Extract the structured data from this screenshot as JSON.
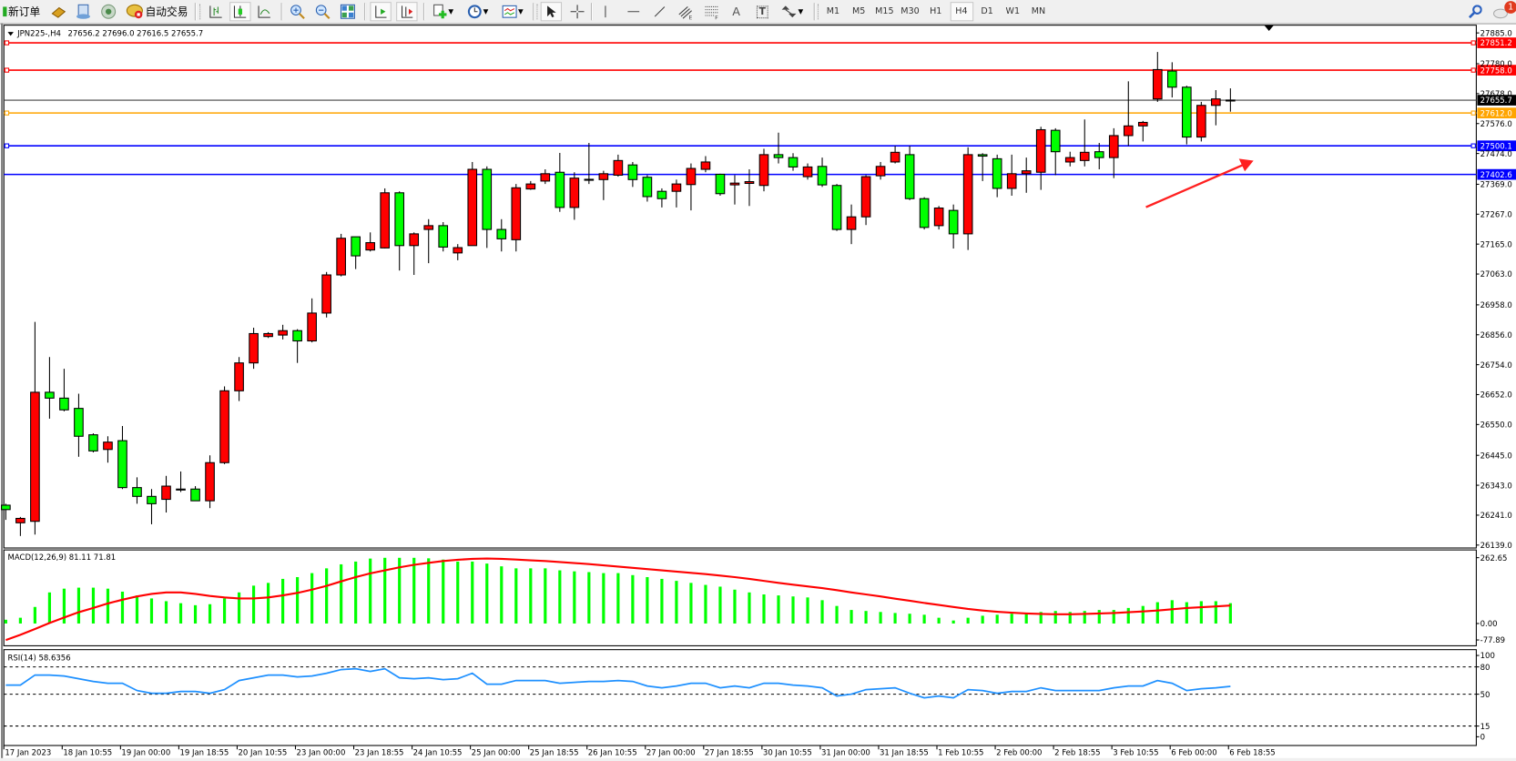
{
  "toolbar": {
    "new_order_label": "新订单",
    "auto_trading_label": "自动交易",
    "text_tool_label": "A",
    "text_label_tool_label": "T",
    "timeframes": [
      "M1",
      "M5",
      "M15",
      "M30",
      "H1",
      "H4",
      "D1",
      "W1",
      "MN"
    ],
    "active_timeframe": "H4",
    "notification_count": "1",
    "icons": [
      "new-order-icon",
      "market-watch-icon",
      "data-window-icon",
      "signals-icon",
      "auto-trading-icon",
      "bar-chart-icon",
      "candlestick-chart-icon",
      "line-chart-icon",
      "zoom-in-icon",
      "zoom-out-icon",
      "tile-windows-icon",
      "auto-scroll-icon",
      "chart-shift-icon",
      "add-indicator-icon",
      "periods-icon",
      "templates-icon",
      "cursor-icon",
      "crosshair-icon",
      "vertical-line-icon",
      "horizontal-line-icon",
      "trend-line-icon",
      "equidistant-channel-icon",
      "fibonacci-icon",
      "text-icon",
      "text-label-icon",
      "arrows-icon",
      "search-icon",
      "notification-icon"
    ]
  },
  "chart": {
    "header_symbol": "JPN225-,H4",
    "header_ohlc": "27656.2 27696.0 27616.5 27655.7",
    "macd_label": "MACD(12,26,9) 81.11 71.81",
    "rsi_label": "RSI(14) 58.6356"
  },
  "chart_data": {
    "type": "candlestick",
    "symbol": "JPN225-",
    "timeframe": "H4",
    "up_color": "#ff0000",
    "down_color": "#00ff00",
    "x_tick_labels": [
      "17 Jan 2023",
      "18 Jan 10:55",
      "19 Jan 00:00",
      "19 Jan 18:55",
      "20 Jan 10:55",
      "23 Jan 00:00",
      "23 Jan 18:55",
      "24 Jan 10:55",
      "25 Jan 00:00",
      "25 Jan 18:55",
      "26 Jan 10:55",
      "27 Jan 00:00",
      "27 Jan 18:55",
      "30 Jan 10:55",
      "31 Jan 00:00",
      "31 Jan 18:55",
      "1 Feb 10:55",
      "2 Feb 00:00",
      "2 Feb 18:55",
      "3 Feb 10:55",
      "6 Feb 00:00",
      "6 Feb 18:55"
    ],
    "y_tick_labels": [
      "27885.0",
      "27780.0",
      "27678.0",
      "27576.0",
      "27474.0",
      "27369.0",
      "27267.0",
      "27165.0",
      "27063.0",
      "26958.0",
      "26856.0",
      "26754.0",
      "26652.0",
      "26550.0",
      "26445.0",
      "26343.0",
      "26241.0",
      "26139.0"
    ],
    "ylim": [
      26139.0,
      27885.0
    ],
    "ohlc": [
      [
        26275,
        26280,
        26225,
        26260
      ],
      [
        26215,
        26235,
        26170,
        26230
      ],
      [
        26220,
        26900,
        26175,
        26660
      ],
      [
        26660,
        26780,
        26570,
        26640
      ],
      [
        26640,
        26740,
        26595,
        26600
      ],
      [
        26605,
        26655,
        26440,
        26510
      ],
      [
        26515,
        26520,
        26455,
        26460
      ],
      [
        26465,
        26510,
        26420,
        26490
      ],
      [
        26495,
        26545,
        26330,
        26335
      ],
      [
        26335,
        26370,
        26280,
        26305
      ],
      [
        26305,
        26330,
        26210,
        26280
      ],
      [
        26295,
        26375,
        26250,
        26340
      ],
      [
        26330,
        26390,
        26320,
        26330
      ],
      [
        26330,
        26340,
        26290,
        26290
      ],
      [
        26290,
        26445,
        26265,
        26420
      ],
      [
        26420,
        26680,
        26415,
        26665
      ],
      [
        26665,
        26780,
        26630,
        26760
      ],
      [
        26760,
        26880,
        26740,
        26860
      ],
      [
        26850,
        26865,
        26845,
        26860
      ],
      [
        26855,
        26890,
        26840,
        26870
      ],
      [
        26870,
        26875,
        26760,
        26835
      ],
      [
        26835,
        26980,
        26830,
        26930
      ],
      [
        26930,
        27070,
        26915,
        27060
      ],
      [
        27060,
        27200,
        27055,
        27185
      ],
      [
        27190,
        27190,
        27080,
        27125
      ],
      [
        27145,
        27205,
        27140,
        27170
      ],
      [
        27152,
        27355,
        27150,
        27340
      ],
      [
        27340,
        27345,
        27075,
        27160
      ],
      [
        27160,
        27205,
        27060,
        27200
      ],
      [
        27215,
        27250,
        27100,
        27228
      ],
      [
        27228,
        27240,
        27140,
        27155
      ],
      [
        27135,
        27165,
        27110,
        27153
      ],
      [
        27160,
        27445,
        27160,
        27420
      ],
      [
        27420,
        27430,
        27152,
        27215
      ],
      [
        27215,
        27250,
        27140,
        27183
      ],
      [
        27180,
        27370,
        27140,
        27357
      ],
      [
        27353,
        27380,
        27350,
        27370
      ],
      [
        27380,
        27420,
        27370,
        27405
      ],
      [
        27410,
        27476,
        27275,
        27290
      ],
      [
        27290,
        27410,
        27248,
        27390
      ],
      [
        27385,
        27510,
        27370,
        27386
      ],
      [
        27385,
        27415,
        27315,
        27405
      ],
      [
        27400,
        27470,
        27395,
        27450
      ],
      [
        27435,
        27445,
        27360,
        27385
      ],
      [
        27393,
        27400,
        27310,
        27327
      ],
      [
        27345,
        27355,
        27290,
        27320
      ],
      [
        27345,
        27385,
        27290,
        27370
      ],
      [
        27368,
        27440,
        27280,
        27423
      ],
      [
        27420,
        27465,
        27410,
        27445
      ],
      [
        27403,
        27405,
        27330,
        27337
      ],
      [
        27367,
        27400,
        27300,
        27373
      ],
      [
        27372,
        27420,
        27295,
        27378
      ],
      [
        27365,
        27490,
        27345,
        27470
      ],
      [
        27470,
        27545,
        27440,
        27460
      ],
      [
        27460,
        27475,
        27415,
        27428
      ],
      [
        27395,
        27440,
        27385,
        27428
      ],
      [
        27430,
        27460,
        27360,
        27367
      ],
      [
        27365,
        27370,
        27210,
        27215
      ],
      [
        27215,
        27300,
        27165,
        27258
      ],
      [
        27258,
        27400,
        27230,
        27395
      ],
      [
        27398,
        27445,
        27385,
        27430
      ],
      [
        27445,
        27500,
        27440,
        27478
      ],
      [
        27470,
        27500,
        27315,
        27320
      ],
      [
        27320,
        27325,
        27215,
        27222
      ],
      [
        27228,
        27295,
        27215,
        27288
      ],
      [
        27280,
        27300,
        27150,
        27200
      ],
      [
        27200,
        27495,
        27145,
        27470
      ],
      [
        27470,
        27475,
        27380,
        27465
      ],
      [
        27456,
        27470,
        27325,
        27355
      ],
      [
        27355,
        27470,
        27330,
        27405
      ],
      [
        27405,
        27460,
        27340,
        27415
      ],
      [
        27410,
        27565,
        27350,
        27555
      ],
      [
        27553,
        27560,
        27400,
        27480
      ],
      [
        27445,
        27480,
        27430,
        27460
      ],
      [
        27450,
        27590,
        27430,
        27478
      ],
      [
        27480,
        27510,
        27420,
        27460
      ],
      [
        27460,
        27560,
        27390,
        27535
      ],
      [
        27535,
        27720,
        27500,
        27568
      ],
      [
        27568,
        27585,
        27515,
        27580
      ],
      [
        27660,
        27820,
        27650,
        27760
      ],
      [
        27755,
        27785,
        27665,
        27700
      ],
      [
        27700,
        27705,
        27505,
        27530
      ],
      [
        27530,
        27650,
        27515,
        27638
      ],
      [
        27638,
        27690,
        27570,
        27660
      ],
      [
        27656.2,
        27696.0,
        27616.5,
        27655.7
      ]
    ],
    "current_price": {
      "value": "27655.7",
      "color": "#000000"
    },
    "horizontal_levels": [
      {
        "value": "27851.2",
        "color": "#ff0000"
      },
      {
        "value": "27758.0",
        "color": "#ff0000"
      },
      {
        "value": "27612.0",
        "color": "#ffa500"
      },
      {
        "value": "27500.1",
        "color": "#0000ff"
      },
      {
        "value": "27402.6",
        "color": "#0000ff"
      }
    ],
    "annotation": {
      "type": "arrow",
      "color": "#ff2020",
      "direction": "up-right"
    },
    "macd": {
      "params": [
        12,
        26,
        9
      ],
      "main_value": 81.11,
      "signal_value": 71.81,
      "y_tick_labels": [
        "262.65",
        "0.00",
        "-77.89"
      ],
      "ylim": [
        -77.89,
        262.65
      ],
      "histogram_color": "#00ff00",
      "signal_color": "#ff0000",
      "histogram": [
        15,
        23,
        66,
        124,
        139,
        143,
        143,
        139,
        127,
        112,
        100,
        89,
        81,
        73,
        77,
        100,
        124,
        151,
        162,
        178,
        185,
        201,
        220,
        236,
        247,
        259,
        262,
        262,
        262,
        260,
        255,
        247,
        247,
        239,
        228,
        220,
        220,
        220,
        212,
        208,
        205,
        201,
        201,
        193,
        185,
        178,
        170,
        162,
        154,
        147,
        135,
        124,
        116,
        112,
        108,
        104,
        93,
        70,
        54,
        50,
        46,
        42,
        39,
        35,
        23,
        12,
        23,
        31,
        35,
        39,
        42,
        46,
        50,
        46,
        50,
        54,
        54,
        62,
        70,
        85,
        93,
        85,
        89,
        89,
        81.11
      ],
      "signal": [
        -66,
        -45,
        -22,
        2,
        24,
        45,
        62,
        80,
        95,
        108,
        118,
        124,
        124,
        118,
        110,
        104,
        100,
        100,
        104,
        112,
        122,
        135,
        150,
        168,
        185,
        200,
        212,
        224,
        234,
        242,
        249,
        254,
        258,
        259,
        258,
        255,
        252,
        249,
        245,
        241,
        237,
        232,
        227,
        222,
        217,
        212,
        207,
        202,
        197,
        191,
        185,
        178,
        170,
        162,
        155,
        148,
        141,
        133,
        124,
        116,
        108,
        99,
        91,
        82,
        74,
        66,
        58,
        52,
        47,
        43,
        40,
        38,
        37,
        37,
        38,
        40,
        42,
        45,
        48,
        52,
        57,
        62,
        65,
        68,
        71.81
      ]
    },
    "rsi": {
      "period": 14,
      "value": 58.6356,
      "line_color": "#1e90ff",
      "y_tick_labels": [
        "100",
        "80",
        "50",
        "15",
        "0"
      ],
      "levels": [
        80,
        50,
        15
      ],
      "ylim": [
        0,
        100
      ],
      "values": [
        60,
        60,
        71,
        71,
        70,
        67,
        64,
        62,
        62,
        54,
        51,
        51,
        53,
        53,
        51,
        55,
        65,
        68,
        71,
        71,
        69,
        70,
        73,
        77,
        78,
        75,
        78,
        68,
        67,
        68,
        66,
        67,
        73,
        61,
        61,
        65,
        65,
        65,
        62,
        63,
        64,
        64,
        65,
        64,
        59,
        57,
        59,
        62,
        62,
        57,
        59,
        57,
        62,
        62,
        60,
        59,
        57,
        48,
        50,
        55,
        56,
        57,
        51,
        46,
        48,
        46,
        55,
        54,
        51,
        53,
        53,
        57,
        54,
        54,
        54,
        54,
        57,
        59,
        59,
        65,
        62,
        54,
        56,
        57,
        58.6356
      ]
    }
  }
}
